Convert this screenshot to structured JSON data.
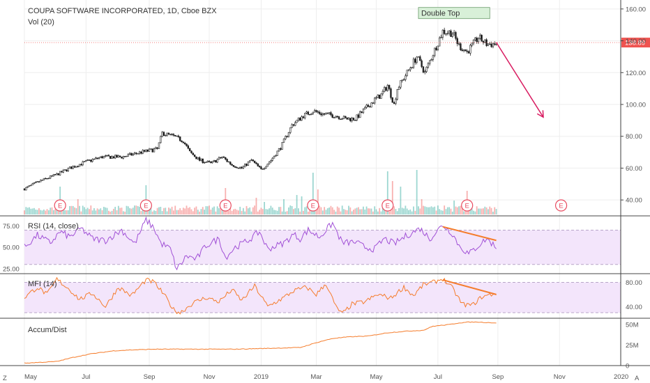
{
  "colors": {
    "up": "#26a69a",
    "down": "#ef5350",
    "rsi": "#a04fd6",
    "mfi": "#f57c2b",
    "ad": "#f57c2b",
    "band": "#f3e5fb",
    "marker": "#e84a5f",
    "arrow": "#d81b60",
    "annotation_bg": "#d8f0d8"
  },
  "header": {
    "title": "COUPA SOFTWARE INCORPORATED, 1D, Cboe BZX",
    "vol_label": "Vol (20)"
  },
  "corner": {
    "left": "Z",
    "right": "A"
  },
  "chart_data": [
    {
      "type": "candlestick",
      "title": "COUPA SOFTWARE INCORPORATED, 1D, Cboe BZX",
      "x_ticks": [
        "May",
        "Jul",
        "Sep",
        "Nov",
        "2019",
        "Mar",
        "May",
        "Jul",
        "Sep",
        "Nov",
        "2020"
      ],
      "y_ticks": [
        "40.00",
        "60.00",
        "80.00",
        "100.00",
        "120.00",
        "140.00",
        "160.00"
      ],
      "ylim": [
        30,
        163
      ],
      "last_price": "138.89",
      "price_path": [
        [
          0,
          47
        ],
        [
          10,
          52
        ],
        [
          20,
          56
        ],
        [
          28,
          60
        ],
        [
          38,
          64
        ],
        [
          48,
          67
        ],
        [
          60,
          67
        ],
        [
          72,
          70
        ],
        [
          82,
          72
        ],
        [
          85,
          82
        ],
        [
          92,
          80
        ],
        [
          98,
          77
        ],
        [
          102,
          70
        ],
        [
          108,
          65
        ],
        [
          115,
          63
        ],
        [
          122,
          67
        ],
        [
          128,
          62
        ],
        [
          134,
          60
        ],
        [
          140,
          65
        ],
        [
          146,
          59
        ],
        [
          152,
          65
        ],
        [
          158,
          73
        ],
        [
          165,
          87
        ],
        [
          172,
          93
        ],
        [
          178,
          96
        ],
        [
          184,
          94
        ],
        [
          192,
          93
        ],
        [
          198,
          91
        ],
        [
          204,
          91
        ],
        [
          210,
          97
        ],
        [
          216,
          103
        ],
        [
          220,
          106
        ],
        [
          224,
          112
        ],
        [
          228,
          100
        ],
        [
          230,
          110
        ],
        [
          236,
          120
        ],
        [
          242,
          130
        ],
        [
          247,
          120
        ],
        [
          252,
          132
        ],
        [
          258,
          146
        ],
        [
          264,
          145
        ],
        [
          268,
          137
        ],
        [
          273,
          133
        ],
        [
          280,
          142
        ],
        [
          285,
          138
        ],
        [
          291,
          138
        ]
      ],
      "earnings_markers": [
        "E",
        "E",
        "E",
        "E",
        "E",
        "E",
        "E"
      ],
      "earnings_days": [
        22,
        75,
        124,
        178,
        224,
        273,
        331
      ],
      "annotation": {
        "text": "Double Top",
        "day_start": 243,
        "day_end": 287,
        "price": 157
      },
      "forecast_arrow": {
        "from_day": 291,
        "from_price": 139,
        "to_day": 320,
        "to_price": 92
      }
    },
    {
      "type": "bar",
      "name": "Vol (20)",
      "note_spikes": [
        [
          22,
          1.0
        ],
        [
          33,
          0.55
        ],
        [
          75,
          1.05
        ],
        [
          124,
          0.95
        ],
        [
          143,
          0.6
        ],
        [
          148,
          0.45
        ],
        [
          160,
          0.55
        ],
        [
          168,
          0.7
        ],
        [
          171,
          0.65
        ],
        [
          178,
          1.5
        ],
        [
          181,
          0.9
        ],
        [
          224,
          1.55
        ],
        [
          227,
          1.2
        ],
        [
          232,
          1.0
        ],
        [
          242,
          1.6
        ],
        [
          245,
          0.55
        ],
        [
          265,
          0.5
        ],
        [
          273,
          0.85
        ]
      ]
    },
    {
      "type": "line",
      "name": "RSI (14, close)",
      "y_ticks": [
        "25.00",
        "50.00",
        "75.00"
      ],
      "ylim": [
        20,
        85
      ],
      "band": [
        30,
        70
      ],
      "path": [
        [
          0,
          50
        ],
        [
          8,
          64
        ],
        [
          16,
          55
        ],
        [
          22,
          68
        ],
        [
          28,
          62
        ],
        [
          35,
          72
        ],
        [
          42,
          60
        ],
        [
          50,
          58
        ],
        [
          60,
          70
        ],
        [
          68,
          54
        ],
        [
          75,
          82
        ],
        [
          80,
          72
        ],
        [
          84,
          55
        ],
        [
          90,
          48
        ],
        [
          94,
          24
        ],
        [
          100,
          40
        ],
        [
          106,
          36
        ],
        [
          112,
          52
        ],
        [
          120,
          60
        ],
        [
          124,
          38
        ],
        [
          130,
          50
        ],
        [
          138,
          58
        ],
        [
          145,
          68
        ],
        [
          150,
          48
        ],
        [
          160,
          55
        ],
        [
          166,
          65
        ],
        [
          170,
          60
        ],
        [
          175,
          70
        ],
        [
          182,
          62
        ],
        [
          190,
          78
        ],
        [
          196,
          55
        ],
        [
          204,
          56
        ],
        [
          210,
          50
        ],
        [
          216,
          48
        ],
        [
          222,
          60
        ],
        [
          228,
          54
        ],
        [
          236,
          64
        ],
        [
          244,
          72
        ],
        [
          250,
          60
        ],
        [
          258,
          76
        ],
        [
          264,
          66
        ],
        [
          268,
          52
        ],
        [
          274,
          42
        ],
        [
          280,
          52
        ],
        [
          285,
          60
        ],
        [
          291,
          50
        ]
      ],
      "trendline": [
        [
          258,
          74
        ],
        [
          291,
          58
        ]
      ]
    },
    {
      "type": "line",
      "name": "MFI (14)",
      "y_ticks": [
        "40.00",
        "80.00"
      ],
      "ylim": [
        22,
        92
      ],
      "band": [
        30,
        80
      ],
      "path": [
        [
          0,
          55
        ],
        [
          8,
          72
        ],
        [
          14,
          60
        ],
        [
          20,
          85
        ],
        [
          28,
          68
        ],
        [
          34,
          52
        ],
        [
          42,
          62
        ],
        [
          50,
          40
        ],
        [
          58,
          72
        ],
        [
          66,
          58
        ],
        [
          75,
          84
        ],
        [
          80,
          80
        ],
        [
          86,
          60
        ],
        [
          92,
          35
        ],
        [
          96,
          30
        ],
        [
          104,
          46
        ],
        [
          112,
          55
        ],
        [
          120,
          48
        ],
        [
          128,
          68
        ],
        [
          134,
          50
        ],
        [
          142,
          74
        ],
        [
          150,
          40
        ],
        [
          160,
          55
        ],
        [
          166,
          66
        ],
        [
          174,
          72
        ],
        [
          180,
          60
        ],
        [
          186,
          78
        ],
        [
          192,
          40
        ],
        [
          196,
          28
        ],
        [
          202,
          44
        ],
        [
          210,
          48
        ],
        [
          218,
          60
        ],
        [
          226,
          54
        ],
        [
          234,
          72
        ],
        [
          240,
          58
        ],
        [
          246,
          76
        ],
        [
          252,
          80
        ],
        [
          258,
          86
        ],
        [
          264,
          70
        ],
        [
          270,
          44
        ],
        [
          276,
          42
        ],
        [
          282,
          56
        ],
        [
          288,
          60
        ],
        [
          291,
          62
        ]
      ],
      "trendline": [
        [
          258,
          84
        ],
        [
          291,
          60
        ]
      ]
    },
    {
      "type": "area",
      "name": "Accum/Dist",
      "y_ticks": [
        "0",
        "25M",
        "50M"
      ],
      "ylim": [
        0,
        56
      ],
      "path": [
        [
          0,
          3
        ],
        [
          20,
          5
        ],
        [
          30,
          10
        ],
        [
          40,
          14
        ],
        [
          55,
          18
        ],
        [
          65,
          19
        ],
        [
          80,
          20
        ],
        [
          100,
          20
        ],
        [
          130,
          20
        ],
        [
          150,
          21
        ],
        [
          170,
          22
        ],
        [
          182,
          29
        ],
        [
          190,
          33
        ],
        [
          200,
          35
        ],
        [
          212,
          36
        ],
        [
          224,
          40
        ],
        [
          236,
          42
        ],
        [
          246,
          43
        ],
        [
          252,
          48
        ],
        [
          262,
          50
        ],
        [
          268,
          52
        ],
        [
          274,
          53
        ],
        [
          280,
          53
        ],
        [
          291,
          52
        ]
      ]
    }
  ]
}
